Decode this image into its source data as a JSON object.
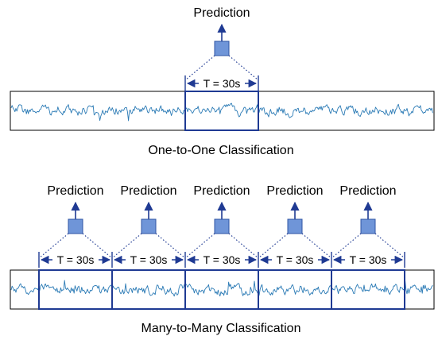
{
  "colors": {
    "signal": "#2a7ab5",
    "window": "#1f3a93",
    "arrow": "#1f3a93",
    "box_fill": "#6f95d8",
    "box_stroke": "#2f55a4",
    "frame": "#000000"
  },
  "one_to_one": {
    "prediction_label": "Prediction",
    "window_label": "T = 30s",
    "caption": "One-to-One Classification"
  },
  "many_to_many": {
    "prediction_labels": [
      "Prediction",
      "Prediction",
      "Prediction",
      "Prediction",
      "Prediction"
    ],
    "window_labels": [
      "T = 30s",
      "T = 30s",
      "T = 30s",
      "T = 30s",
      "T = 30s"
    ],
    "caption": "Many-to-Many Classification"
  }
}
